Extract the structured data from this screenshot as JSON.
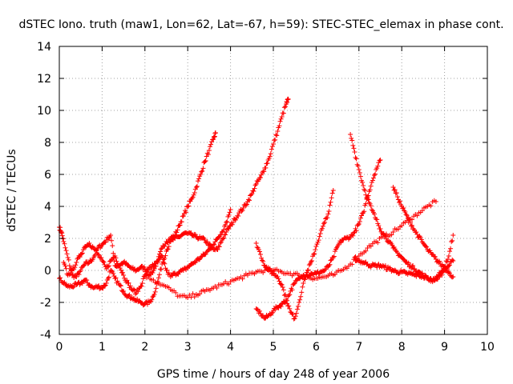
{
  "chart_data": {
    "type": "scatter",
    "title": "dSTEC Iono. truth (maw1, Lon=62, Lat=-67, h=59): STEC-STEC_elemax in phase cont.",
    "xlabel": "GPS time / hours of day 248 of year 2006",
    "ylabel": "dSTEC  / TECUs",
    "xlim": [
      0,
      10
    ],
    "ylim": [
      -4,
      14
    ],
    "xticks": [
      "0",
      "1",
      "2",
      "3",
      "4",
      "5",
      "6",
      "7",
      "8",
      "9",
      "10"
    ],
    "yticks": [
      "-4",
      "-2",
      "0",
      "2",
      "4",
      "6",
      "8",
      "10",
      "12",
      "14"
    ],
    "grid": true,
    "marker": "+",
    "color": "#ff0000",
    "series": [
      {
        "x": [
          0.0,
          0.05,
          0.1,
          0.2,
          0.3,
          0.4,
          0.5,
          0.6,
          0.7,
          0.8,
          0.9,
          1.0,
          1.1,
          1.2,
          1.3,
          1.4,
          1.5,
          1.6,
          1.7,
          1.8,
          1.9,
          2.0,
          2.1,
          2.2,
          2.3,
          2.4,
          2.5,
          2.6,
          2.7,
          2.8,
          2.9,
          3.0,
          3.1,
          3.2,
          3.3,
          3.4,
          3.5,
          3.6,
          3.65
        ],
        "y": [
          2.7,
          2.4,
          1.8,
          0.8,
          -0.3,
          -0.4,
          0.0,
          0.4,
          0.5,
          0.8,
          1.4,
          1.6,
          1.9,
          2.2,
          0.3,
          0.3,
          0.5,
          0.3,
          0.1,
          0.0,
          0.2,
          0.1,
          -0.3,
          0.0,
          0.6,
          1.4,
          1.8,
          2.0,
          2.2,
          2.8,
          3.4,
          4.0,
          4.5,
          5.2,
          6.0,
          6.8,
          7.5,
          8.2,
          8.6
        ]
      },
      {
        "x": [
          0.0,
          0.1,
          0.2,
          0.3,
          0.4,
          0.5,
          0.6,
          0.7,
          0.8,
          0.9,
          1.0,
          1.1,
          1.2,
          1.3,
          1.4,
          1.5,
          1.6,
          1.7,
          1.8,
          1.9,
          2.0,
          2.1,
          2.2,
          2.3,
          2.4,
          2.5,
          2.6,
          2.7,
          2.8,
          2.9,
          3.0,
          3.1,
          3.2,
          3.3,
          3.4,
          3.5,
          3.6,
          3.7,
          3.8,
          3.9,
          4.0,
          4.1,
          4.2,
          4.3,
          4.4,
          4.5,
          4.6,
          4.7,
          4.8,
          4.9,
          5.0,
          5.1,
          5.2,
          5.3,
          5.35
        ],
        "y": [
          -0.5,
          -0.8,
          -1.0,
          -1.0,
          -0.9,
          -0.8,
          -0.6,
          -0.9,
          -1.1,
          -1.0,
          -1.1,
          -0.8,
          0.0,
          -0.5,
          -0.9,
          -1.3,
          -1.6,
          -1.7,
          -1.9,
          -2.0,
          -2.1,
          -2.0,
          -1.6,
          -0.7,
          0.4,
          1.2,
          1.8,
          2.0,
          2.1,
          2.3,
          2.3,
          2.2,
          2.1,
          2.0,
          1.9,
          1.6,
          1.3,
          1.3,
          1.9,
          2.4,
          2.8,
          3.2,
          3.6,
          3.9,
          4.3,
          4.8,
          5.4,
          5.8,
          6.4,
          7.0,
          7.9,
          8.7,
          9.6,
          10.4,
          10.7
        ]
      },
      {
        "x": [
          0.1,
          0.2,
          0.3,
          0.4,
          0.5,
          0.6,
          0.7,
          0.8,
          0.9,
          1.0,
          1.1,
          1.2,
          1.3,
          1.4,
          1.5,
          1.6,
          1.7,
          1.8,
          1.9,
          2.0,
          2.1,
          2.2,
          2.3,
          2.4,
          2.5,
          2.6,
          2.7,
          2.8,
          2.9,
          3.0,
          3.1,
          3.2,
          3.3,
          3.4,
          3.5,
          3.6,
          3.7,
          3.8,
          3.9,
          4.0
        ],
        "y": [
          0.5,
          -0.3,
          0.0,
          0.5,
          1.0,
          1.5,
          1.7,
          1.4,
          1.0,
          0.6,
          0.1,
          0.6,
          0.9,
          0.3,
          -0.3,
          -0.8,
          -1.2,
          -1.4,
          -1.0,
          -0.3,
          0.2,
          0.3,
          0.5,
          0.9,
          0.0,
          -0.4,
          -0.2,
          -0.1,
          0.0,
          0.2,
          0.4,
          0.6,
          0.8,
          1.0,
          1.3,
          1.6,
          2.0,
          2.4,
          3.0,
          3.8
        ]
      },
      {
        "x": [
          2.0,
          2.2,
          2.4,
          2.6,
          2.8,
          3.0,
          3.2,
          3.4,
          3.6,
          3.8,
          4.0,
          4.2,
          4.4,
          4.6,
          4.8,
          5.0,
          5.2,
          5.4,
          5.6,
          5.8,
          6.0,
          6.2,
          6.4,
          6.6,
          6.8,
          7.0,
          7.2,
          7.4,
          7.6,
          7.8,
          8.0,
          8.2,
          8.4,
          8.6,
          8.8
        ],
        "y": [
          -0.3,
          -0.6,
          -0.9,
          -1.2,
          -1.6,
          -1.7,
          -1.5,
          -1.3,
          -1.1,
          -0.9,
          -0.7,
          -0.5,
          -0.3,
          -0.1,
          0.0,
          0.0,
          -0.1,
          -0.2,
          -0.3,
          -0.4,
          -0.5,
          -0.4,
          -0.3,
          0.0,
          0.4,
          0.9,
          1.4,
          1.8,
          2.1,
          2.4,
          2.8,
          3.2,
          3.6,
          4.0,
          4.3
        ]
      },
      {
        "x": [
          4.6,
          4.7,
          4.8,
          4.9,
          5.0,
          5.1,
          5.2,
          5.3,
          5.4,
          5.5,
          5.6,
          5.7,
          5.8,
          5.9,
          6.0,
          6.1,
          6.2,
          6.3,
          6.4,
          6.5,
          6.6,
          6.7,
          6.8,
          6.9,
          7.0,
          7.1,
          7.2,
          7.3,
          7.4,
          7.5
        ],
        "y": [
          -2.4,
          -2.7,
          -3.0,
          -2.8,
          -2.5,
          -2.3,
          -2.1,
          -1.9,
          -1.3,
          -0.8,
          -0.5,
          -0.3,
          -0.3,
          -0.2,
          -0.2,
          -0.1,
          0.0,
          0.3,
          0.8,
          1.5,
          1.9,
          2.0,
          2.1,
          2.4,
          2.9,
          3.6,
          4.6,
          5.5,
          6.3,
          6.9
        ]
      },
      {
        "x": [
          4.6,
          4.7,
          4.8,
          4.9,
          5.0,
          5.1,
          5.2,
          5.3,
          5.4,
          5.5,
          5.6,
          5.7,
          5.8,
          5.9,
          6.0,
          6.1,
          6.2,
          6.3,
          6.4
        ],
        "y": [
          1.7,
          1.0,
          0.3,
          0.0,
          -0.2,
          -0.4,
          -0.9,
          -1.8,
          -2.6,
          -3.0,
          -2.0,
          -0.8,
          0.0,
          0.6,
          1.5,
          2.3,
          3.0,
          3.7,
          5.0
        ]
      },
      {
        "x": [
          6.8,
          6.9,
          7.0,
          7.1,
          7.2,
          7.3,
          7.4,
          7.5,
          7.6,
          7.7,
          7.8,
          7.9,
          8.0,
          8.1,
          8.2,
          8.3,
          8.4,
          8.5,
          8.6,
          8.7,
          8.8,
          8.9,
          9.0,
          9.1,
          9.2
        ],
        "y": [
          8.5,
          7.4,
          6.3,
          5.3,
          4.5,
          3.8,
          3.2,
          2.6,
          2.2,
          1.8,
          1.4,
          1.1,
          0.8,
          0.5,
          0.3,
          0.1,
          -0.1,
          -0.3,
          -0.5,
          -0.6,
          -0.5,
          -0.3,
          0.0,
          0.3,
          0.6
        ]
      },
      {
        "x": [
          6.9,
          7.0,
          7.1,
          7.2,
          7.3,
          7.4,
          7.5,
          7.6,
          7.7,
          7.8,
          7.9,
          8.0,
          8.1,
          8.2,
          8.3,
          8.4,
          8.5,
          8.6,
          8.7,
          8.8,
          8.9,
          9.0,
          9.1,
          9.2
        ],
        "y": [
          0.8,
          0.6,
          0.5,
          0.4,
          0.3,
          0.3,
          0.3,
          0.2,
          0.1,
          0.0,
          -0.1,
          -0.1,
          -0.2,
          -0.2,
          -0.3,
          -0.3,
          -0.4,
          -0.5,
          -0.6,
          -0.5,
          -0.2,
          0.2,
          0.9,
          2.2
        ]
      },
      {
        "x": [
          7.8,
          7.9,
          8.0,
          8.1,
          8.2,
          8.3,
          8.4,
          8.5,
          8.6,
          8.7,
          8.8,
          8.9,
          9.0,
          9.1,
          9.2
        ],
        "y": [
          5.2,
          4.6,
          4.0,
          3.5,
          3.0,
          2.5,
          2.1,
          1.7,
          1.3,
          1.0,
          0.7,
          0.4,
          0.2,
          -0.1,
          -0.4
        ]
      }
    ]
  }
}
